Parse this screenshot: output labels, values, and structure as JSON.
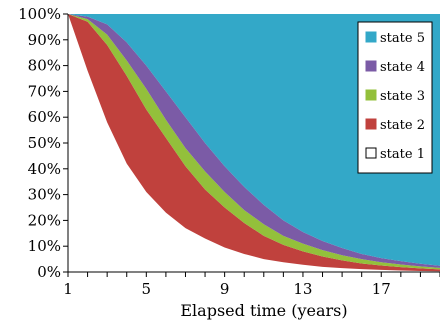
{
  "chart_data": {
    "type": "area",
    "stacking": "cumulative",
    "title": "",
    "xlabel": "Elapsed time (years)",
    "ylabel": "",
    "xlim": [
      1,
      20
    ],
    "ylim": [
      0,
      100
    ],
    "x_ticks": [
      1,
      5,
      9,
      13,
      17
    ],
    "x_tick_labels": [
      "1",
      "5",
      "9",
      "13",
      "17"
    ],
    "y_ticks": [
      0,
      10,
      20,
      30,
      40,
      50,
      60,
      70,
      80,
      90,
      100
    ],
    "y_tick_labels": [
      "0%",
      "10%",
      "20%",
      "30%",
      "40%",
      "50%",
      "60%",
      "70%",
      "80%",
      "90%",
      "100%"
    ],
    "grid": false,
    "legend_position": "top-right",
    "x": [
      1,
      2,
      3,
      4,
      5,
      6,
      7,
      8,
      9,
      10,
      11,
      12,
      13,
      14,
      15,
      16,
      17,
      18,
      19,
      20
    ],
    "series": [
      {
        "name": "state 1",
        "color": "#ffffff",
        "boundary": [
          100,
          78,
          58,
          42,
          31,
          23,
          17,
          13,
          9.5,
          7,
          5,
          3.8,
          2.8,
          2,
          1.5,
          1.1,
          0.8,
          0.6,
          0.4,
          0.3
        ]
      },
      {
        "name": "state 2",
        "color": "#c0413d",
        "boundary": [
          100,
          97,
          88,
          76,
          63,
          52,
          41,
          32,
          25,
          19,
          14,
          10.5,
          8,
          6,
          4.5,
          3.3,
          2.5,
          1.9,
          1.4,
          1
        ]
      },
      {
        "name": "state 3",
        "color": "#93c03b",
        "boundary": [
          100,
          98,
          92,
          82,
          71,
          59,
          48,
          39,
          31,
          24,
          18.5,
          14,
          11,
          8.5,
          6.5,
          5,
          3.8,
          2.9,
          2.2,
          1.6
        ]
      },
      {
        "name": "state 4",
        "color": "#7b5ba6",
        "boundary": [
          100,
          99,
          96,
          89,
          80,
          70,
          60,
          50,
          41,
          33,
          26,
          20,
          15.5,
          12,
          9.3,
          7,
          5.4,
          4.2,
          3.2,
          2.4
        ]
      },
      {
        "name": "state 5",
        "color": "#33a8c8",
        "boundary": [
          100,
          100,
          100,
          100,
          100,
          100,
          100,
          100,
          100,
          100,
          100,
          100,
          100,
          100,
          100,
          100,
          100,
          100,
          100,
          100
        ]
      }
    ]
  }
}
